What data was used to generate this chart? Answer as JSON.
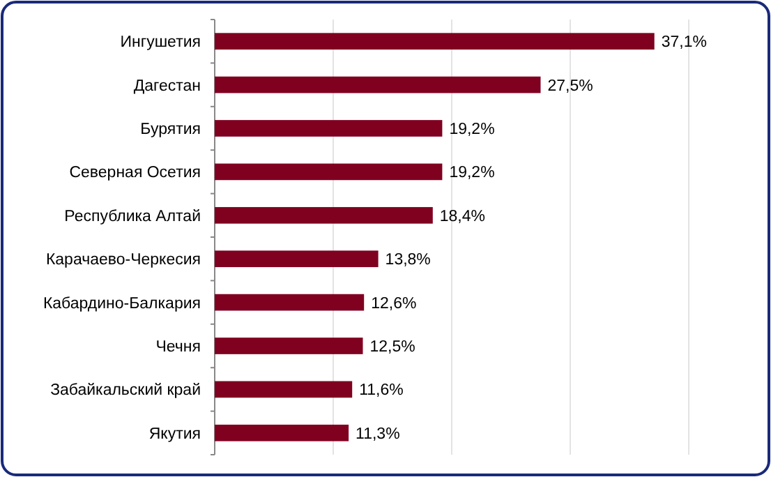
{
  "chart_data": {
    "type": "bar",
    "orientation": "horizontal",
    "categories": [
      "Ингушетия",
      "Дагестан",
      "Бурятия",
      "Северная Осетия",
      "Республика Алтай",
      "Карачаево-Черкесия",
      "Кабардино-Балкария",
      "Чечня",
      "Забайкальский край",
      "Якутия"
    ],
    "values": [
      37.1,
      27.5,
      19.2,
      19.2,
      18.4,
      13.8,
      12.6,
      12.5,
      11.6,
      11.3
    ],
    "value_labels": [
      "37,1%",
      "27,5%",
      "19,2%",
      "19,2%",
      "18,4%",
      "13,8%",
      "12,6%",
      "12,5%",
      "11,6%",
      "11,3%"
    ],
    "color": "#800020",
    "xlim": [
      0,
      40
    ],
    "xticks": [
      {
        "value": 0,
        "label": null
      },
      {
        "value": 10,
        "label": null
      },
      {
        "value": 20,
        "label": null
      },
      {
        "value": 30,
        "label": null
      },
      {
        "value": 40,
        "label": null
      }
    ],
    "grid": "x"
  }
}
